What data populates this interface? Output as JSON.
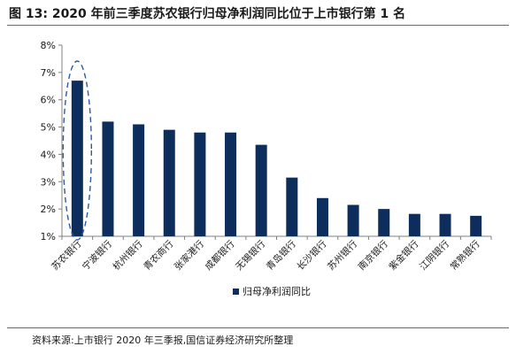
{
  "title": "图 13:  2020 年前三季度苏农银行归母净利润同比位于上市银行第 1 名",
  "source": "资料来源:上市银行 2020 年三季报,国信证券经济研究所整理",
  "colors": {
    "bar": "#0d2d5c",
    "highlight": "#2f5aa0",
    "axis": "#808080"
  },
  "chart_data": {
    "type": "bar",
    "categories": [
      "苏农银行",
      "宁波银行",
      "杭州银行",
      "青农商行",
      "张家港行",
      "成都银行",
      "无锡银行",
      "青岛银行",
      "长沙银行",
      "苏州银行",
      "南京银行",
      "紫金银行",
      "江阴银行",
      "常熟银行"
    ],
    "series": [
      {
        "name": "归母净利润同比",
        "values": [
          6.7,
          5.2,
          5.1,
          4.9,
          4.8,
          4.8,
          4.35,
          3.15,
          2.4,
          2.15,
          2.0,
          1.82,
          1.82,
          1.75
        ]
      }
    ],
    "ylim": [
      1,
      8
    ],
    "yticks": [
      "1%",
      "2%",
      "3%",
      "4%",
      "5%",
      "6%",
      "7%",
      "8%"
    ],
    "legend": "bottom",
    "grid": false,
    "highlight_index": 0
  }
}
